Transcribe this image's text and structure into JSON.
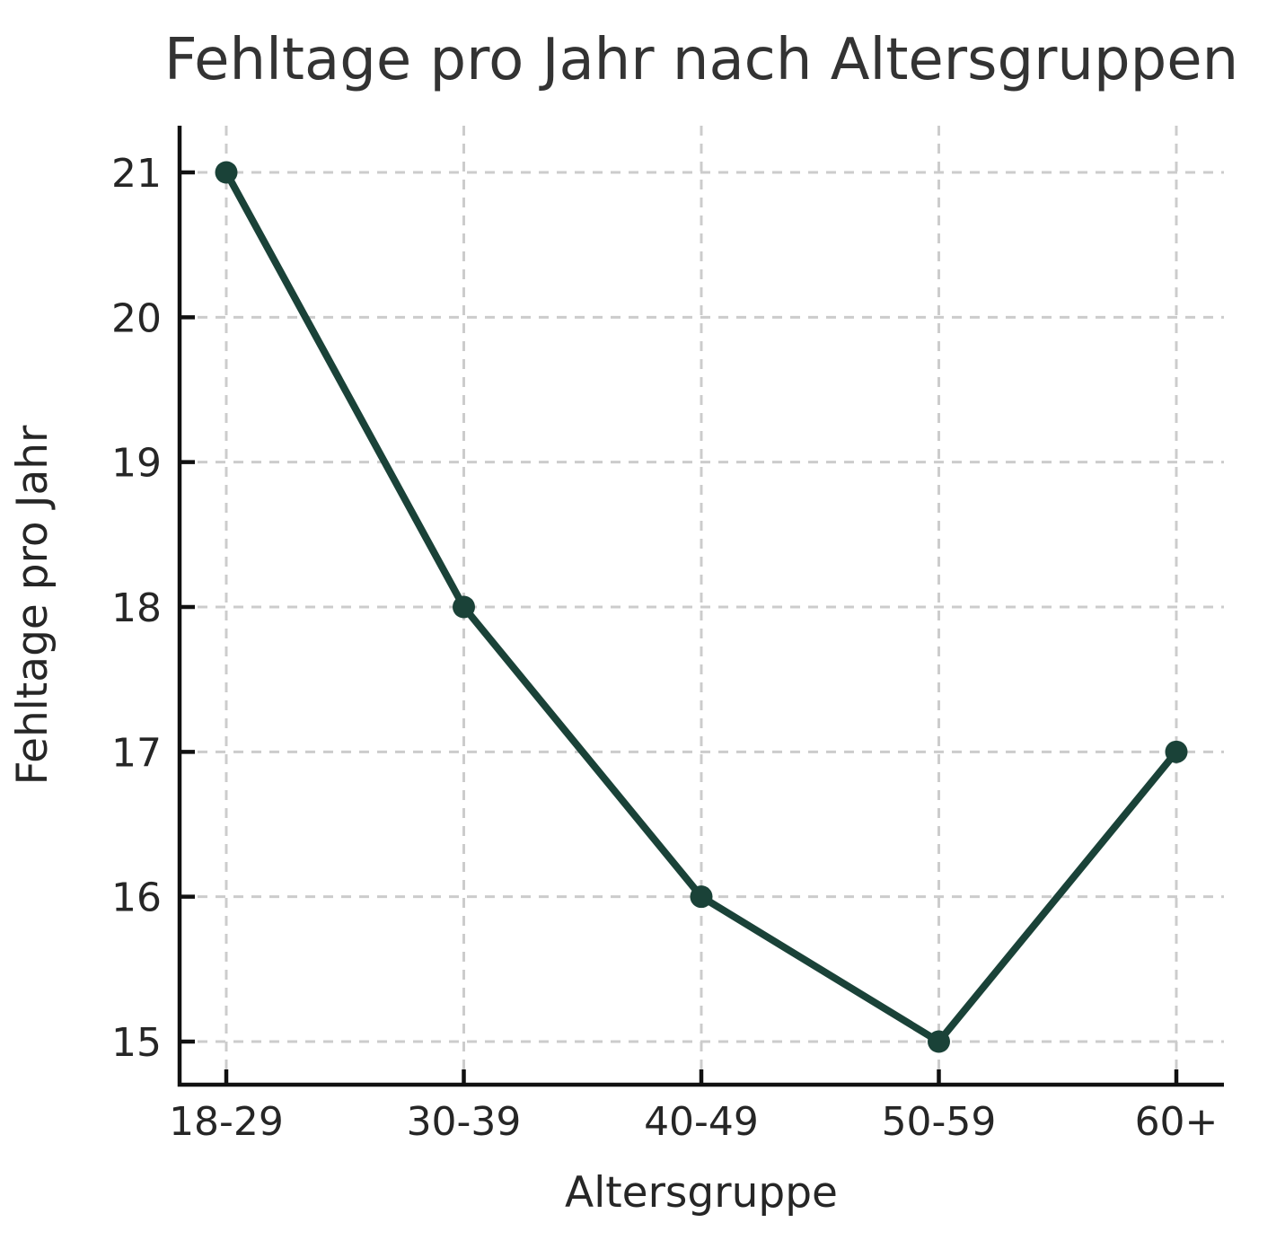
{
  "chart_data": {
    "type": "line",
    "title": "Fehltage pro Jahr nach Altersgruppen",
    "xlabel": "Altersgruppe",
    "ylabel": "Fehltage pro Jahr",
    "categories": [
      "18-29",
      "30-39",
      "40-49",
      "50-59",
      "60+"
    ],
    "values": [
      21,
      18,
      16,
      15,
      17
    ],
    "yticks": [
      15,
      16,
      17,
      18,
      19,
      20,
      21
    ],
    "ylim": [
      14.7,
      21.33
    ],
    "grid": true,
    "grid_style": "dashed",
    "legend_position": "none",
    "colors": {
      "line": "#1a4238",
      "marker": "#1a4238",
      "grid": "#cccccc",
      "axis": "#111111",
      "title_text": "#333333",
      "tick_text": "#262626"
    }
  }
}
